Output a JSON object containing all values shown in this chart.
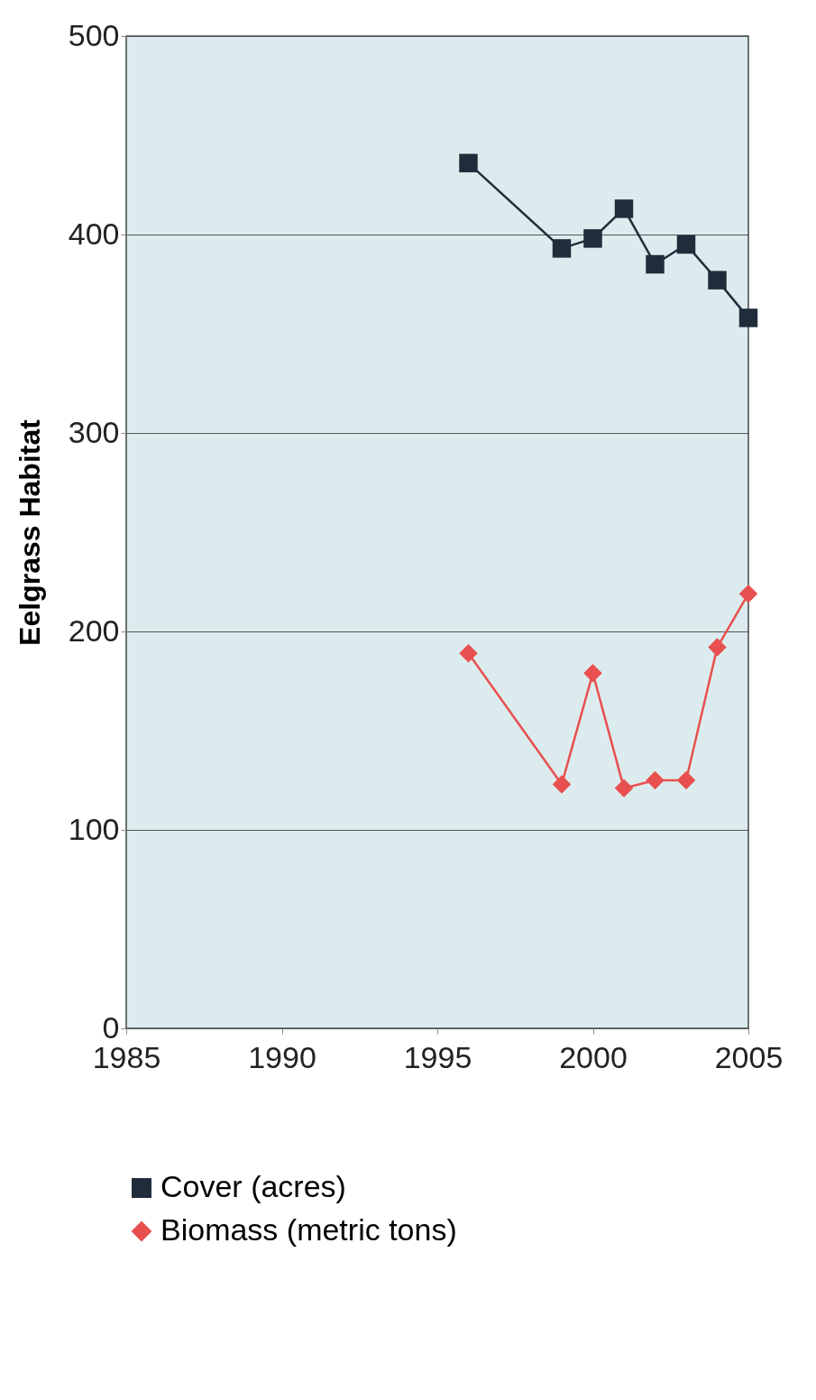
{
  "chart_data": {
    "type": "line",
    "ylabel": "Eelgrass Habitat",
    "xlim": [
      1985,
      2005
    ],
    "xticks": [
      1985,
      1990,
      1995,
      2000,
      2005
    ],
    "ylim": [
      0,
      500
    ],
    "yticks": [
      0,
      100,
      200,
      300,
      400,
      500
    ],
    "grid": "y",
    "legend": "bottom",
    "x": [
      1996,
      1999,
      2000,
      2001,
      2002,
      2003,
      2004,
      2005
    ],
    "series": [
      {
        "name": "Cover (acres)",
        "color": "#1f2d3a",
        "marker": "square",
        "values": [
          436,
          393,
          398,
          413,
          385,
          395,
          377,
          358
        ]
      },
      {
        "name": "Biomass (metric tons)",
        "color": "#e8504f",
        "marker": "diamond",
        "values": [
          189,
          123,
          179,
          121,
          125,
          125,
          192,
          219
        ]
      }
    ]
  }
}
